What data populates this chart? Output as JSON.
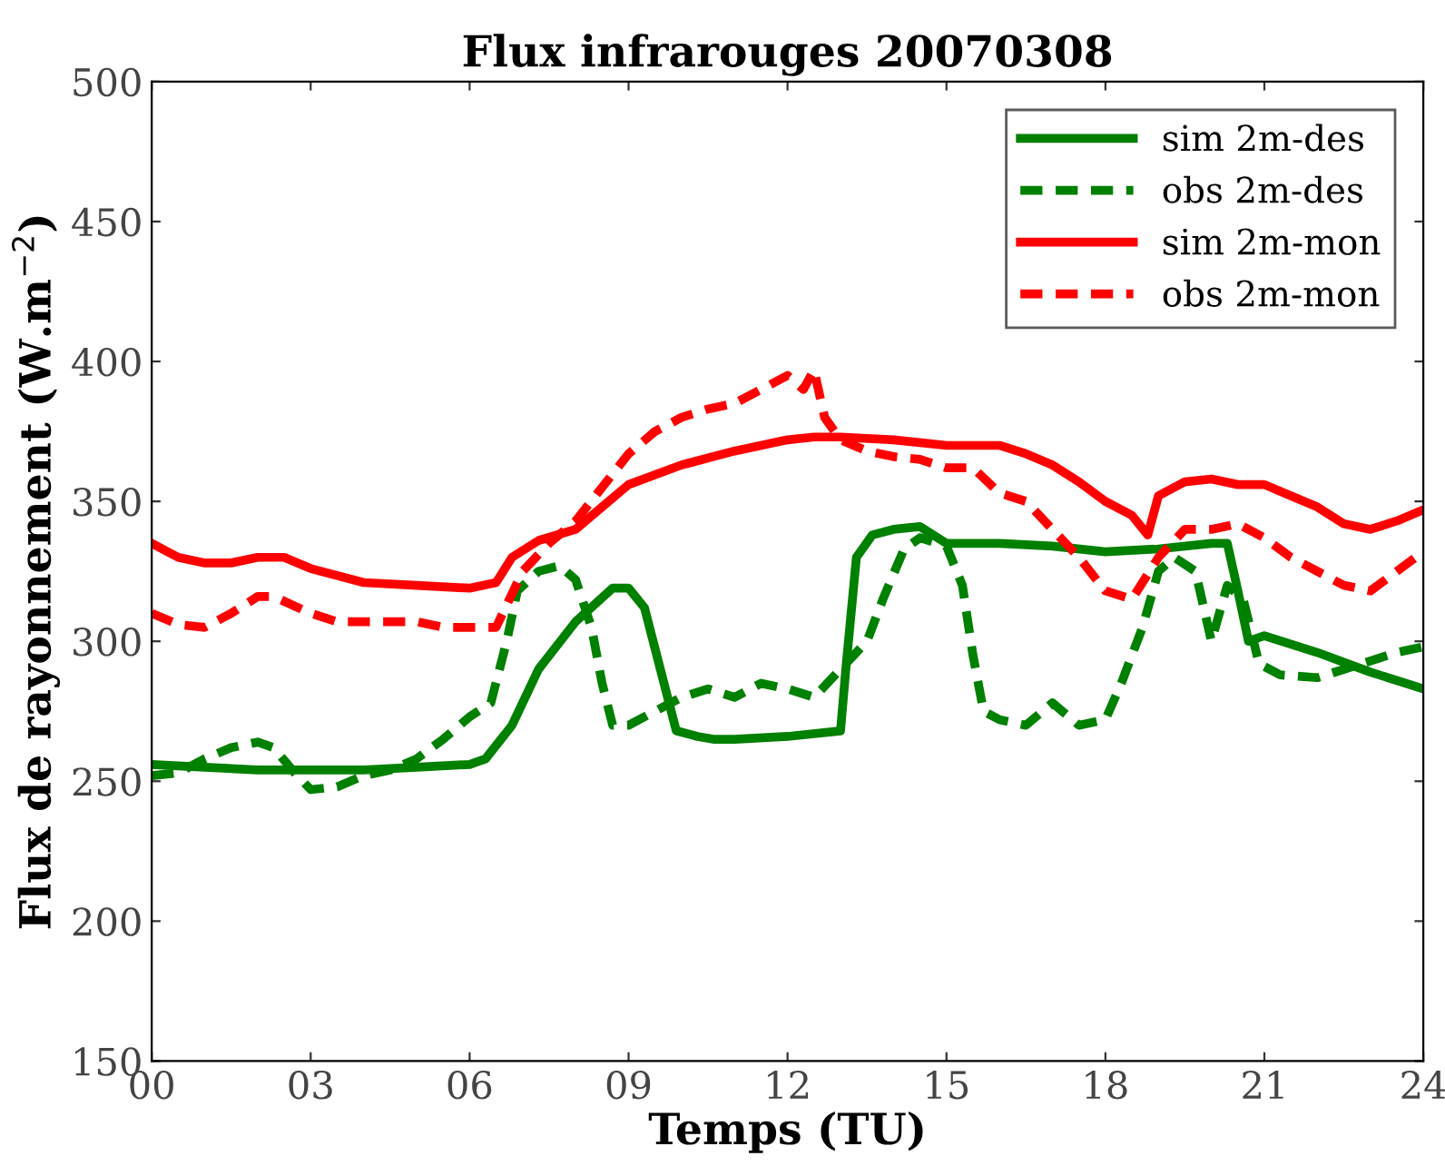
{
  "chart_data": {
    "type": "line",
    "title": "Flux infrarouges 20070308",
    "xlabel": "Temps (TU)",
    "ylabel": "Flux de rayonnement (W.m$^{−2}$)",
    "xlim": [
      0,
      24
    ],
    "ylim": [
      150,
      500
    ],
    "xticks": [
      {
        "value": 0,
        "label": "00"
      },
      {
        "value": 3,
        "label": "03"
      },
      {
        "value": 6,
        "label": "06"
      },
      {
        "value": 9,
        "label": "09"
      },
      {
        "value": 12,
        "label": "12"
      },
      {
        "value": 15,
        "label": "15"
      },
      {
        "value": 18,
        "label": "18"
      },
      {
        "value": 21,
        "label": "21"
      },
      {
        "value": 24,
        "label": "24"
      }
    ],
    "yticks": [
      150,
      200,
      250,
      300,
      350,
      400,
      450,
      500
    ],
    "grid": false,
    "legend": "top right",
    "series": [
      {
        "name": "sim 2m-des",
        "color": "#008000",
        "line_style": "solid",
        "x": [
          0,
          1,
          2,
          3,
          4,
          5,
          6,
          6.3,
          6.8,
          7.3,
          8,
          8.7,
          9,
          9.3,
          9.6,
          9.9,
          10.3,
          10.6,
          11,
          12,
          13,
          13.1,
          13.3,
          13.6,
          14,
          14.5,
          15,
          16,
          17,
          18,
          19,
          20,
          20.3,
          20.5,
          20.7,
          21,
          22,
          23,
          24
        ],
        "values": [
          256,
          255,
          254,
          254,
          254,
          255,
          256,
          258,
          270,
          290,
          307,
          319,
          319,
          312,
          290,
          268,
          266,
          265,
          265,
          266,
          268,
          290,
          330,
          338,
          340,
          341,
          335,
          335,
          334,
          332,
          333,
          335,
          335,
          318,
          300,
          302,
          296,
          289,
          283
        ]
      },
      {
        "name": "obs 2m-des",
        "color": "#008000",
        "line_style": "dashed",
        "x": [
          0,
          0.5,
          1,
          1.5,
          2,
          2.3,
          2.7,
          3,
          3.5,
          4,
          4.5,
          5,
          5.5,
          6,
          6.4,
          6.7,
          6.9,
          7.3,
          7.7,
          8,
          8.3,
          8.5,
          8.7,
          9,
          9.5,
          10,
          10.5,
          11,
          11.5,
          12,
          12.5,
          13,
          13.5,
          13.8,
          14.2,
          14.5,
          15,
          15.3,
          15.5,
          15.7,
          16,
          16.5,
          17,
          17.5,
          18,
          18.3,
          18.7,
          19,
          19.3,
          19.7,
          20,
          20.3,
          20.6,
          20.9,
          21.3,
          22,
          22.5,
          23,
          23.5,
          24
        ],
        "values": [
          252,
          253,
          258,
          262,
          264,
          262,
          253,
          247,
          248,
          252,
          254,
          258,
          265,
          273,
          278,
          300,
          318,
          325,
          327,
          322,
          305,
          285,
          270,
          270,
          275,
          280,
          283,
          280,
          285,
          283,
          280,
          290,
          300,
          315,
          333,
          337,
          334,
          320,
          295,
          275,
          272,
          270,
          278,
          270,
          272,
          285,
          305,
          325,
          330,
          325,
          300,
          320,
          315,
          292,
          288,
          287,
          290,
          293,
          296,
          298
        ]
      },
      {
        "name": "sim 2m-mon",
        "color": "#ff0000",
        "line_style": "solid",
        "x": [
          0,
          0.5,
          1,
          1.5,
          2,
          2.5,
          3,
          4,
          5,
          6,
          6.5,
          6.8,
          7.3,
          8,
          8.5,
          9,
          10,
          11,
          12,
          12.5,
          13,
          14,
          15,
          16,
          16.5,
          17,
          17.5,
          18,
          18.5,
          18.8,
          19,
          19.5,
          20,
          20.5,
          21,
          21.5,
          22,
          22.5,
          23,
          23.5,
          24
        ],
        "values": [
          335,
          330,
          328,
          328,
          330,
          330,
          326,
          321,
          320,
          319,
          321,
          330,
          336,
          340,
          348,
          356,
          363,
          368,
          372,
          373,
          373,
          372,
          370,
          370,
          367,
          363,
          357,
          350,
          345,
          338,
          352,
          357,
          358,
          356,
          356,
          352,
          348,
          342,
          340,
          343,
          347
        ]
      },
      {
        "name": "obs 2m-mon",
        "color": "#ff0000",
        "line_style": "dashed",
        "x": [
          0,
          0.5,
          1,
          1.5,
          2,
          2.3,
          3,
          3.5,
          4,
          5,
          5.5,
          6,
          6.5,
          7,
          7.5,
          8,
          8.5,
          9,
          9.5,
          10,
          10.5,
          11,
          11.5,
          12,
          12.3,
          12.5,
          12.7,
          13,
          13.5,
          14,
          14.5,
          15,
          15.5,
          16,
          16.5,
          17,
          17.5,
          18,
          18.5,
          19,
          19.5,
          20,
          20.5,
          21,
          21.5,
          22,
          22.5,
          23,
          23.5,
          24
        ],
        "values": [
          310,
          306,
          305,
          310,
          316,
          316,
          310,
          307,
          307,
          307,
          305,
          305,
          305,
          325,
          335,
          343,
          355,
          367,
          375,
          380,
          383,
          385,
          390,
          395,
          390,
          397,
          380,
          372,
          368,
          366,
          365,
          362,
          362,
          353,
          350,
          340,
          330,
          318,
          315,
          330,
          340,
          340,
          342,
          337,
          330,
          325,
          320,
          318,
          325,
          332
        ]
      }
    ]
  }
}
